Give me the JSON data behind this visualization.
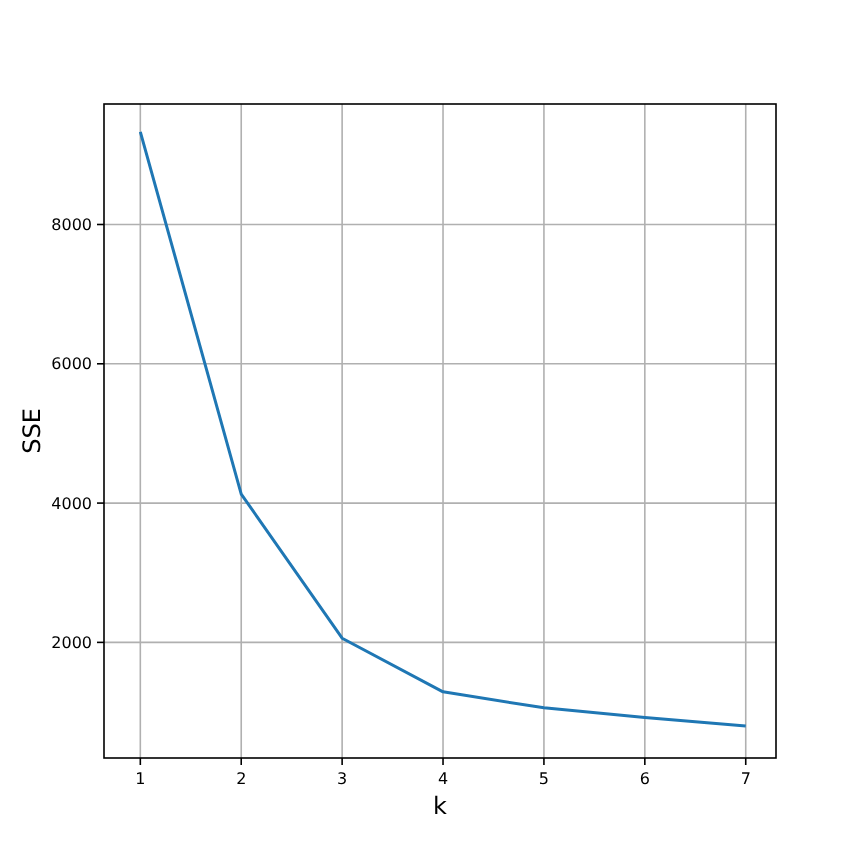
{
  "chart_data": {
    "type": "line",
    "xlabel": "k",
    "ylabel": "SSE",
    "x": [
      1,
      2,
      3,
      4,
      5,
      6,
      7
    ],
    "series": [
      {
        "color": "#1f77b4",
        "values": [
          9330,
          4130,
          2060,
          1290,
          1060,
          920,
          800
        ]
      }
    ],
    "xlim": [
      0.64,
      7.3
    ],
    "xticks": [
      1,
      2,
      3,
      4,
      5,
      6,
      7
    ],
    "ylim": [
      340,
      9730
    ],
    "yticks": [
      2000,
      4000,
      6000,
      8000
    ],
    "grid": true,
    "marker": "none",
    "line_style": "solid"
  }
}
